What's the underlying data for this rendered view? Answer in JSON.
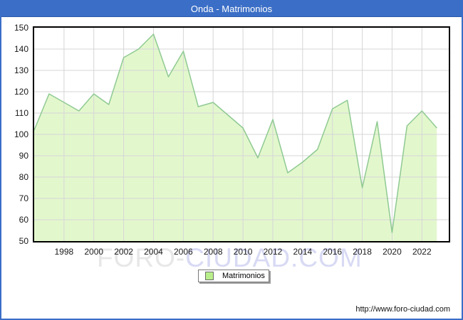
{
  "window": {
    "title": "Onda - Matrimonios"
  },
  "legend": {
    "label": "Matrimonios"
  },
  "watermark": {
    "part1": "FORO-",
    "part2": "CIUDAD.COM"
  },
  "footer": {
    "url": "http://www.foro-ciudad.com"
  },
  "colors": {
    "titlebar_and_border": "#3b6ec6",
    "area_fill": "#e3f7cd",
    "area_line": "#8fca92",
    "grid": "#d6d6d6",
    "legend_swatch": "#b9ef8a",
    "watermark_gray": "#e7e7e7",
    "watermark_blue": "#d8daf4"
  },
  "chart_data": {
    "type": "area",
    "title": "Onda - Matrimonios",
    "series_name": "Matrimonios",
    "x": [
      1996,
      1997,
      1998,
      1999,
      2000,
      2001,
      2002,
      2003,
      2004,
      2005,
      2006,
      2007,
      2008,
      2009,
      2010,
      2011,
      2012,
      2013,
      2014,
      2015,
      2016,
      2017,
      2018,
      2019,
      2020,
      2021,
      2022,
      2023
    ],
    "values": [
      102,
      119,
      115,
      111,
      119,
      114,
      136,
      140,
      147,
      127,
      139,
      113,
      115,
      109,
      103,
      89,
      107,
      82,
      87,
      93,
      112,
      116,
      75,
      106,
      54,
      104,
      111,
      103
    ],
    "ylim": [
      50,
      150
    ],
    "ytick_step": 10,
    "xticks": [
      1998,
      2000,
      2002,
      2004,
      2006,
      2008,
      2010,
      2012,
      2014,
      2016,
      2018,
      2020,
      2022
    ],
    "x_domain": [
      1996,
      2023.8
    ],
    "grid": true,
    "legend_position": "bottom-center"
  }
}
